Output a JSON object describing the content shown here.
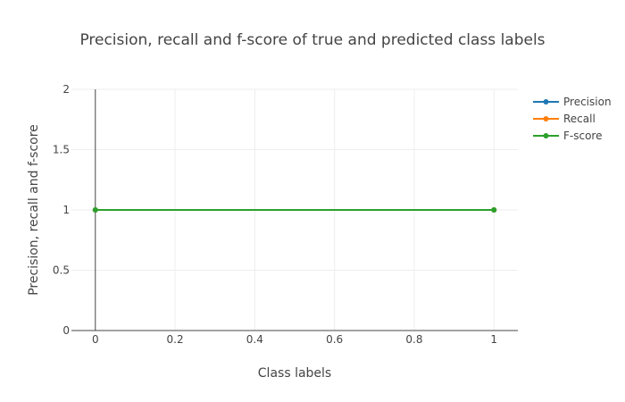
{
  "chart_data": {
    "type": "line",
    "title": "Precision, recall and f-score of true and predicted class labels",
    "xlabel": "Class labels",
    "ylabel": "Precision, recall and f-score",
    "xlim": [
      -0.06,
      1.06
    ],
    "ylim": [
      0,
      2
    ],
    "xticks": [
      0,
      0.2,
      0.4,
      0.6,
      0.8,
      1
    ],
    "xtick_labels": [
      "0",
      "0.2",
      "0.4",
      "0.6",
      "0.8",
      "1"
    ],
    "yticks": [
      0,
      0.5,
      1,
      1.5,
      2
    ],
    "ytick_labels": [
      "0",
      "0.5",
      "1",
      "1.5",
      "2"
    ],
    "grid": true,
    "legend_position": "top-right",
    "x": [
      0,
      1
    ],
    "series": [
      {
        "name": "Precision",
        "values": [
          1,
          1
        ],
        "color": "#1f77b4"
      },
      {
        "name": "Recall",
        "values": [
          1,
          1
        ],
        "color": "#ff7f0e"
      },
      {
        "name": "F-score",
        "values": [
          1,
          1
        ],
        "color": "#2ca02c"
      }
    ]
  }
}
